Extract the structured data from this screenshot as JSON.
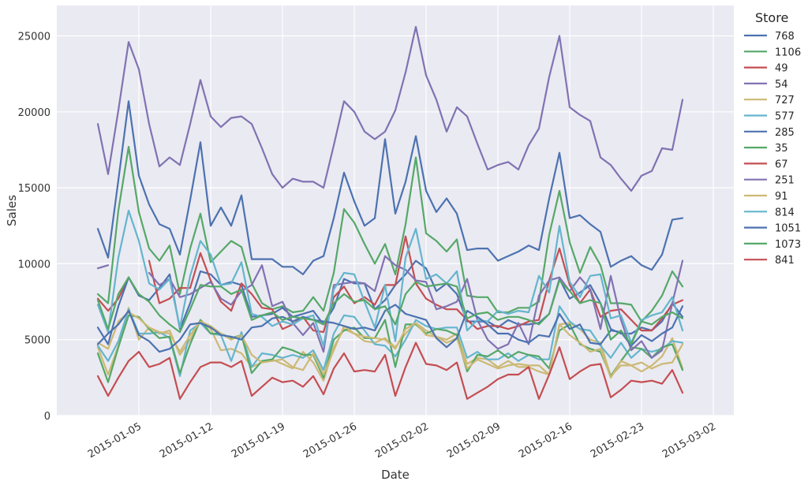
{
  "chart_data": {
    "type": "line",
    "xlabel": "Date",
    "ylabel": "Sales",
    "ylim": [
      0,
      27000
    ],
    "xlim": [
      "2014-12-28",
      "2015-03-04"
    ],
    "yticks": [
      0,
      5000,
      10000,
      15000,
      20000,
      25000
    ],
    "xticks": [
      "2015-01-05",
      "2015-01-12",
      "2015-01-19",
      "2015-01-26",
      "2015-02-02",
      "2015-02-09",
      "2015-02-16",
      "2015-02-23",
      "2015-03-02"
    ],
    "x_start": "2015-01-01",
    "grid": true,
    "background": "#EAEAF2",
    "legend_title": "Store",
    "legend_placement": "outside-right",
    "series": [
      {
        "name": "768",
        "color": "#4C72B0",
        "values": [
          12300,
          10400,
          15500,
          20700,
          15800,
          13900,
          12600,
          12300,
          10600,
          14200,
          18000,
          12500,
          13700,
          12500,
          14500,
          10300,
          10300,
          10300,
          9800,
          9800,
          9300,
          10200,
          10500,
          13000,
          16000,
          14100,
          12500,
          13000,
          18200,
          13300,
          15400,
          18400,
          14800,
          13400,
          14300,
          13300,
          10900,
          11000,
          11000,
          10200,
          10500,
          10800,
          11200,
          10900,
          14300,
          17300,
          13000,
          13200,
          12600,
          12100,
          9800,
          10200,
          10500,
          9900,
          9600,
          10600,
          12900,
          13000
        ]
      },
      {
        "name": "1106",
        "color": "#55A868",
        "values": [
          8000,
          7400,
          13500,
          17700,
          13400,
          11000,
          10200,
          11200,
          8000,
          11000,
          13300,
          10100,
          10800,
          11500,
          11100,
          8700,
          7400,
          7000,
          7200,
          6800,
          6900,
          7800,
          6900,
          9400,
          13600,
          12700,
          11300,
          10000,
          11300,
          9300,
          12600,
          17000,
          12000,
          11500,
          10800,
          11600,
          7900,
          7800,
          7800,
          6800,
          6800,
          7100,
          7100,
          7500,
          11900,
          14800,
          11400,
          9400,
          11100,
          9900,
          7400,
          7400,
          7300,
          6200,
          6900,
          7900,
          9500,
          8500
        ]
      },
      {
        "name": "49",
        "color": "#C44E52",
        "values": [
          7700,
          6900,
          7700,
          9100,
          null,
          null,
          null,
          null,
          null,
          null,
          null,
          null,
          null,
          null,
          null,
          null,
          null,
          null,
          null,
          null,
          null,
          null,
          null,
          null,
          null,
          null,
          null,
          null,
          null,
          null,
          null,
          null,
          null,
          null,
          null,
          null,
          null,
          null,
          null,
          null,
          null,
          null,
          null,
          null,
          null,
          null,
          null,
          null,
          null,
          null,
          null,
          null,
          null,
          null,
          null,
          null,
          null,
          null
        ]
      },
      {
        "name": "54",
        "color": "#8172B2",
        "values": [
          19200,
          15900,
          20100,
          24600,
          22800,
          19200,
          16400,
          17000,
          16500,
          19200,
          22100,
          19700,
          19000,
          19600,
          19700,
          19200,
          17600,
          15900,
          15000,
          15600,
          15400,
          15400,
          15000,
          17800,
          20700,
          20000,
          18700,
          18200,
          18700,
          20100,
          22600,
          25600,
          22400,
          20800,
          18700,
          20300,
          19700,
          17900,
          16200,
          16500,
          16700,
          16200,
          17800,
          18900,
          22300,
          25000,
          20300,
          19800,
          19400,
          17000,
          16500,
          15600,
          14800,
          15800,
          16100,
          17600,
          17500,
          20800
        ]
      },
      {
        "name": "727",
        "color": "#CCB974",
        "values": [
          4500,
          2700,
          4600,
          7100,
          5000,
          5800,
          5400,
          5600,
          4000,
          5000,
          6300,
          5700,
          4300,
          4400,
          4100,
          3200,
          3500,
          3700,
          3400,
          3100,
          4200,
          3500,
          2300,
          4500,
          5700,
          5400,
          4900,
          4800,
          5100,
          4500,
          5400,
          6100,
          5600,
          5200,
          5000,
          5400,
          3400,
          3800,
          3700,
          3200,
          3600,
          3200,
          3200,
          2900,
          2700,
          6000,
          6100,
          5700,
          5000,
          4800,
          2600,
          3300,
          3300,
          2900,
          3300,
          3900,
          5100,
          3100
        ]
      },
      {
        "name": "577",
        "color": "#64B5CD",
        "values": [
          4600,
          3600,
          4900,
          7000,
          5400,
          5400,
          5500,
          5100,
          2600,
          5600,
          6100,
          5400,
          5300,
          3600,
          5500,
          3200,
          4100,
          4000,
          3800,
          4000,
          3800,
          4300,
          3000,
          5400,
          6600,
          6500,
          5600,
          4700,
          4600,
          3900,
          5000,
          6300,
          5900,
          5700,
          5800,
          5800,
          3800,
          4200,
          3700,
          3700,
          4100,
          3600,
          4000,
          3700,
          3700,
          7200,
          6200,
          5700,
          5600,
          4600,
          3800,
          4800,
          3800,
          4400,
          4200,
          4400,
          4900,
          4800
        ]
      },
      {
        "name": "285",
        "color": "#4C72B0",
        "values": [
          5800,
          4700,
          7200,
          9100,
          7900,
          7600,
          8400,
          9300,
          5700,
          7400,
          9500,
          9300,
          8600,
          8800,
          8600,
          6500,
          6600,
          6700,
          7100,
          6500,
          6700,
          6900,
          6000,
          7100,
          9000,
          8700,
          8700,
          7000,
          7600,
          8600,
          9300,
          10200,
          9700,
          8200,
          8700,
          8000,
          6200,
          6200,
          6200,
          5800,
          6300,
          6000,
          6000,
          6100,
          6700,
          9000,
          7700,
          8100,
          8600,
          7400,
          5700,
          5400,
          5400,
          5800,
          5600,
          6200,
          7400,
          6500
        ]
      },
      {
        "name": "35",
        "color": "#55A868",
        "values": [
          4100,
          2200,
          4500,
          6600,
          6500,
          5700,
          5100,
          5200,
          2800,
          4700,
          6300,
          5400,
          5400,
          5100,
          5300,
          2800,
          3600,
          3700,
          4500,
          4300,
          4000,
          4000,
          2500,
          5000,
          5600,
          5800,
          5100,
          5100,
          6300,
          3200,
          6000,
          6000,
          5400,
          5700,
          5600,
          5300,
          2900,
          4000,
          3900,
          4300,
          3800,
          4200,
          4000,
          3900,
          3100,
          5600,
          6000,
          4700,
          4400,
          4200,
          2600,
          3600,
          4500,
          4400,
          3800,
          4500,
          4700,
          3000
        ]
      },
      {
        "name": "67",
        "color": "#C44E52",
        "values": [
          null,
          null,
          null,
          null,
          null,
          10200,
          7400,
          7700,
          8400,
          8400,
          10700,
          8900,
          7500,
          6900,
          8700,
          8000,
          7100,
          7000,
          5700,
          6000,
          6500,
          5600,
          5500,
          7800,
          8500,
          7400,
          7800,
          7300,
          8600,
          8600,
          11800,
          8700,
          7700,
          7300,
          7000,
          7000,
          6300,
          5700,
          5900,
          5900,
          5700,
          5900,
          6200,
          6300,
          8900,
          11000,
          8600,
          7400,
          8300,
          6500,
          6900,
          7000,
          6300,
          5600,
          5600,
          6400,
          7300,
          7600
        ]
      },
      {
        "name": "251",
        "color": "#8172B2",
        "values": [
          9700,
          9900,
          null,
          null,
          null,
          9400,
          8600,
          9000,
          7800,
          8000,
          8400,
          8800,
          7700,
          7300,
          8200,
          8600,
          9900,
          7200,
          7500,
          6100,
          5300,
          6100,
          4200,
          8600,
          8700,
          8800,
          8700,
          8200,
          10500,
          9900,
          9600,
          8900,
          8800,
          7000,
          7200,
          7500,
          9000,
          6300,
          5000,
          4400,
          4700,
          6100,
          4700,
          7900,
          8900,
          9100,
          8200,
          9100,
          8300,
          5700,
          9200,
          6300,
          4300,
          4900,
          3800,
          4300,
          7400,
          10200
        ]
      },
      {
        "name": "91",
        "color": "#CCB974",
        "values": [
          4800,
          4400,
          6200,
          6800,
          6400,
          5800,
          5500,
          5400,
          4200,
          5300,
          6200,
          5900,
          5400,
          5000,
          5300,
          4000,
          3500,
          3600,
          3700,
          3200,
          3000,
          4100,
          2700,
          4300,
          5900,
          5400,
          5200,
          5100,
          5000,
          4400,
          5700,
          6100,
          5300,
          5200,
          4800,
          5100,
          3100,
          3700,
          3400,
          3100,
          3300,
          3400,
          3300,
          3300,
          2700,
          6000,
          5300,
          4800,
          4200,
          4400,
          2500,
          3600,
          3300,
          3500,
          3100,
          3400,
          3500,
          4700
        ]
      },
      {
        "name": "814",
        "color": "#64B5CD",
        "values": [
          7300,
          5500,
          10400,
          13500,
          11500,
          8700,
          8300,
          9000,
          5800,
          9200,
          11500,
          10600,
          8600,
          8700,
          10100,
          6700,
          6500,
          5900,
          6200,
          6000,
          6400,
          6600,
          4600,
          8300,
          9400,
          9300,
          7500,
          5800,
          8600,
          4900,
          10400,
          12300,
          9000,
          9300,
          8700,
          9500,
          5600,
          6300,
          6200,
          6900,
          6700,
          6900,
          6800,
          9200,
          8100,
          12500,
          8800,
          7800,
          9200,
          9300,
          6400,
          6600,
          4800,
          6300,
          6600,
          6800,
          7800,
          5600
        ]
      },
      {
        "name": "1051",
        "color": "#4C72B0",
        "values": [
          4700,
          5400,
          6000,
          6900,
          5300,
          4900,
          4200,
          4400,
          5000,
          6000,
          6100,
          5800,
          5300,
          5200,
          5000,
          5800,
          5900,
          6400,
          6500,
          6200,
          6500,
          6300,
          6200,
          6100,
          5900,
          5700,
          5800,
          5600,
          6900,
          7300,
          6700,
          6500,
          6300,
          5100,
          4500,
          5100,
          6900,
          6500,
          6000,
          5400,
          5400,
          5000,
          4800,
          5300,
          5200,
          6700,
          5700,
          6000,
          4800,
          4700,
          5600,
          5500,
          4600,
          5300,
          4900,
          5400,
          5800,
          7200
        ]
      },
      {
        "name": "1073",
        "color": "#55A868",
        "values": [
          7600,
          5700,
          8000,
          9100,
          8000,
          7500,
          6600,
          6000,
          5500,
          7000,
          8600,
          8500,
          8500,
          8000,
          8300,
          6300,
          6600,
          6800,
          6300,
          6500,
          6400,
          6300,
          6000,
          7400,
          8000,
          7500,
          7600,
          7000,
          7200,
          6000,
          8000,
          8800,
          8500,
          8600,
          8700,
          8500,
          6400,
          6700,
          6800,
          6300,
          6500,
          6500,
          6300,
          6000,
          6700,
          8900,
          8200,
          7400,
          7600,
          7400,
          5000,
          5600,
          4700,
          6200,
          6000,
          6500,
          6800,
          6400
        ]
      },
      {
        "name": "841",
        "color": "#C44E52",
        "values": [
          2600,
          1300,
          2500,
          3600,
          4200,
          3200,
          3400,
          3800,
          1100,
          2200,
          3200,
          3500,
          3500,
          3200,
          3600,
          1300,
          1900,
          2500,
          2200,
          2300,
          1900,
          2600,
          1400,
          3100,
          4100,
          2900,
          3000,
          2900,
          4000,
          1300,
          3200,
          4800,
          3400,
          3300,
          3000,
          3500,
          1100,
          1500,
          1900,
          2400,
          2700,
          2700,
          3200,
          1100,
          2700,
          4500,
          2400,
          2900,
          3300,
          3400,
          1200,
          1700,
          2300,
          2200,
          2300,
          2100,
          3000,
          1500
        ]
      }
    ]
  }
}
